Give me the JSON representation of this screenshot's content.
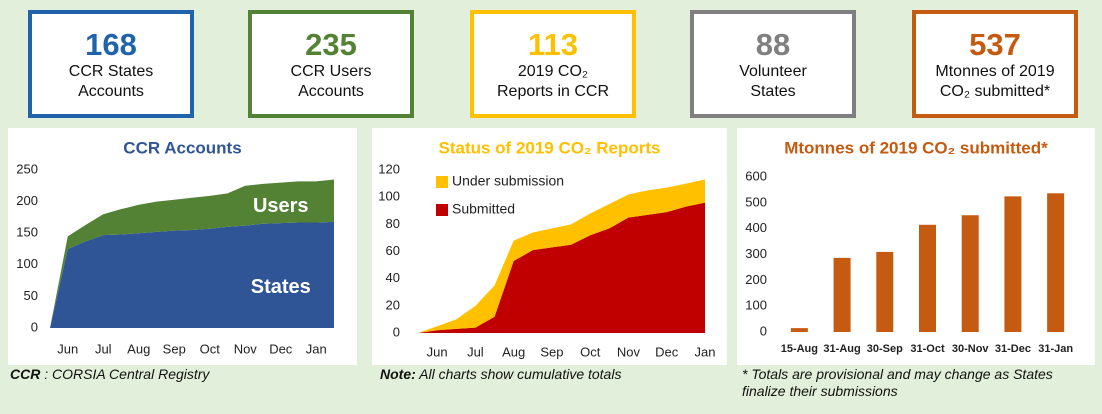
{
  "cards": [
    {
      "value": "168",
      "label_lines": [
        "CCR States",
        "Accounts"
      ],
      "color": "#1f63ad"
    },
    {
      "value": "235",
      "label_lines": [
        "CCR Users",
        "Accounts"
      ],
      "color": "#548235"
    },
    {
      "value": "113",
      "label_lines": [
        "2019 CO₂",
        "Reports in CCR"
      ],
      "color": "#ffc000"
    },
    {
      "value": "88",
      "label_lines": [
        "Volunteer",
        "States"
      ],
      "color": "#7f7f7f"
    },
    {
      "value": "537",
      "label_lines": [
        "Mtonnes of 2019",
        "CO₂ submitted*"
      ],
      "color": "#c55a11"
    }
  ],
  "chart_data": [
    {
      "type": "area",
      "title": "CCR Accounts",
      "title_color": "#2f5597",
      "legend": "inline",
      "categories": [
        null,
        "Jun",
        null,
        "Jul",
        null,
        "Aug",
        null,
        "Sep",
        null,
        "Oct",
        null,
        "Nov",
        null,
        "Dec",
        null,
        "Jan",
        null
      ],
      "series": [
        {
          "name": "States",
          "color": "#2f5597",
          "values": [
            0,
            125,
            137,
            147,
            148,
            150,
            152,
            154,
            155,
            157,
            160,
            162,
            165,
            166,
            167,
            167,
            168
          ]
        },
        {
          "name": "Users",
          "color": "#548235",
          "values": [
            0,
            20,
            26,
            33,
            40,
            45,
            48,
            49,
            51,
            52,
            53,
            63,
            63,
            64,
            65,
            65,
            67
          ]
        }
      ],
      "ylim": [
        0,
        250
      ],
      "yticks": [
        0,
        50,
        100,
        150,
        200,
        250
      ],
      "grid": false
    },
    {
      "type": "area",
      "title": "Status of 2019 CO₂ Reports",
      "title_color": "#ffc000",
      "legend": "upper left",
      "categories": [
        null,
        "Jun",
        null,
        "Jul",
        null,
        "Aug",
        null,
        "Sep",
        null,
        "Oct",
        null,
        "Nov",
        null,
        "Dec",
        null,
        "Jan"
      ],
      "series": [
        {
          "name": "Submitted",
          "color": "#c00000",
          "values": [
            0,
            2,
            3,
            4,
            12,
            53,
            61,
            63,
            65,
            72,
            77,
            85,
            87,
            89,
            93,
            96
          ]
        },
        {
          "name": "Under submission",
          "color": "#ffc000",
          "values": [
            0,
            3,
            7,
            16,
            23,
            15,
            13,
            14,
            15,
            16,
            18,
            17,
            18,
            18,
            17,
            17
          ]
        }
      ],
      "ylim": [
        0,
        120
      ],
      "yticks": [
        0,
        20,
        40,
        60,
        80,
        100,
        120
      ],
      "grid": false
    },
    {
      "type": "bar",
      "title": "Mtonnes of 2019 CO₂ submitted*",
      "title_color": "#c55a11",
      "categories": [
        "15-Aug",
        "31-Aug",
        "30-Sep",
        "31-Oct",
        "30-Nov",
        "31-Dec",
        "31-Jan"
      ],
      "values": [
        15,
        287,
        310,
        415,
        452,
        525,
        537
      ],
      "color": "#c55a11",
      "ylim": [
        0,
        600
      ],
      "yticks": [
        0,
        100,
        200,
        300,
        400,
        500,
        600
      ],
      "grid": false
    }
  ],
  "notes": [
    {
      "bold": "CCR",
      "rest": " : CORSIA Central Registry"
    },
    {
      "bold": "Note:",
      "rest": " All charts show cumulative totals"
    },
    {
      "rest": "* Totals are provisional and may change as States finalize their submissions"
    }
  ]
}
